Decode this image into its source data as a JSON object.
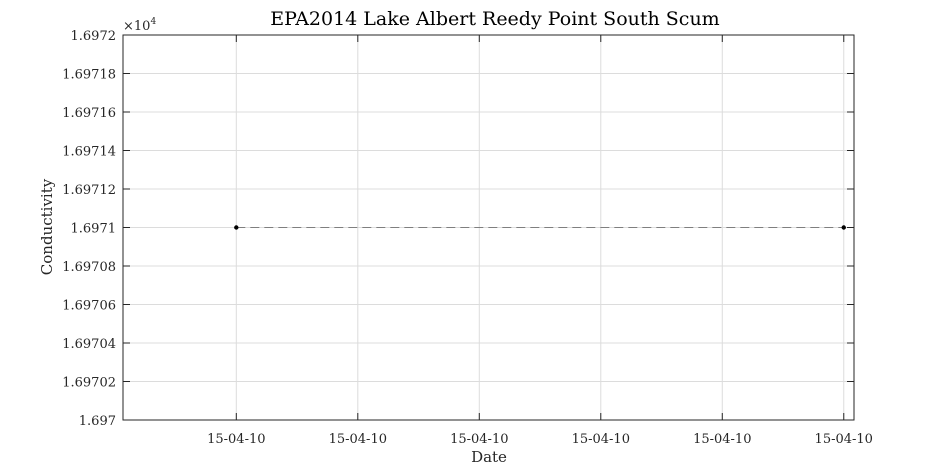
{
  "chart_data": {
    "type": "line",
    "title": "EPA2014 Lake Albert Reedy Point South Scum",
    "xlabel": "Date",
    "ylabel": "Conductivity",
    "y_exponent_label": "×10",
    "y_exponent_power": "4",
    "x_tick_labels": [
      "15-04-10",
      "15-04-10",
      "15-04-10",
      "15-04-10",
      "15-04-10",
      "15-04-10"
    ],
    "y_tick_labels": [
      "1.697",
      "1.69702",
      "1.69704",
      "1.69706",
      "1.69708",
      "1.6971",
      "1.69712",
      "1.69714",
      "1.69716",
      "1.69718",
      "1.6972"
    ],
    "ylim": [
      1.697,
      1.6972
    ],
    "xlim_fraction": [
      0,
      1
    ],
    "series": [
      {
        "line_style": "dashed",
        "marker": "dot",
        "color": "#000000",
        "points": [
          {
            "x_fraction": 0.155,
            "y": 1.6971
          },
          {
            "x_fraction": 0.986,
            "y": 1.6971
          }
        ]
      }
    ],
    "grid": true
  }
}
